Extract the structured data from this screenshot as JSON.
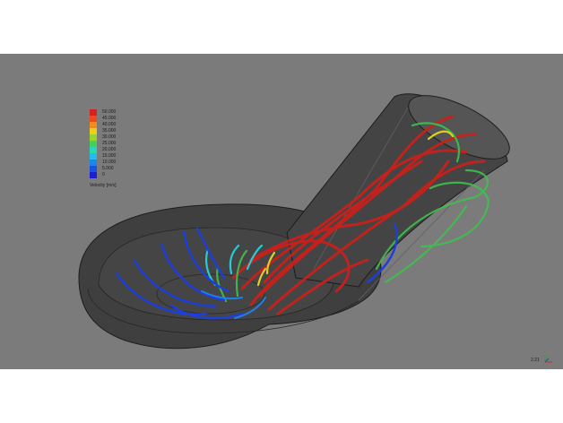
{
  "viewport": {
    "background": "#7b7b7b",
    "model_color": "#3f3f3f",
    "edge_color": "#1c1c1c"
  },
  "legend": {
    "title": "Velocity [m/s]",
    "ticks": [
      "50.000",
      "45.000",
      "40.000",
      "35.000",
      "30.000",
      "25.000",
      "20.000",
      "15.000",
      "10.000",
      "5.000",
      "0"
    ],
    "colors": [
      "#d8201c",
      "#ec4a1a",
      "#f08a1a",
      "#e8d21c",
      "#9ad52a",
      "#3fd35a",
      "#2ad6b4",
      "#22bde8",
      "#1a86ee",
      "#1c4fe4",
      "#1a20cc"
    ]
  },
  "scale": {
    "readout": "2.21"
  },
  "icons": {
    "axis": "axis-triad-icon"
  }
}
